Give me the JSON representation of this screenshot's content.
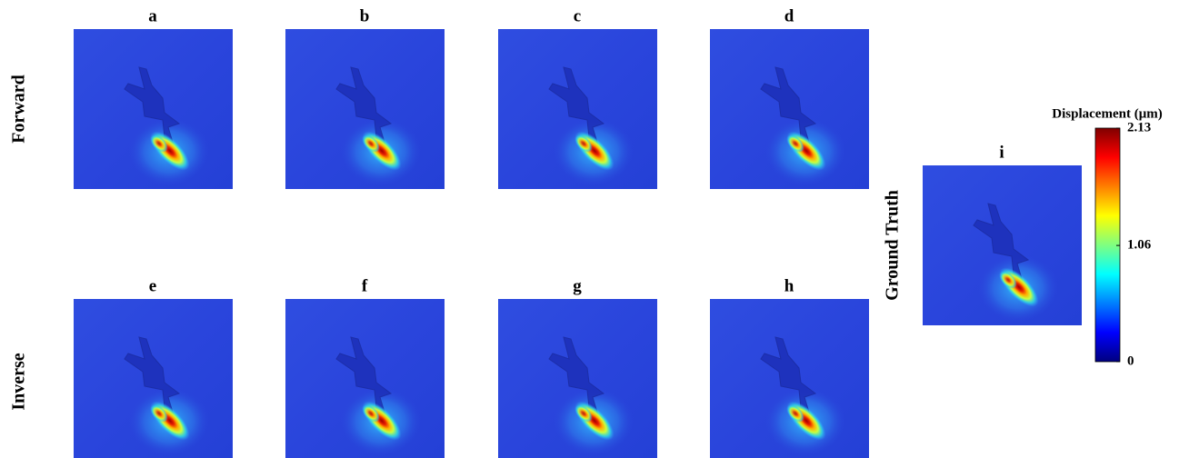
{
  "rows": [
    "Forward",
    "Inverse"
  ],
  "panels": [
    "a",
    "b",
    "c",
    "d",
    "e",
    "f",
    "g",
    "h"
  ],
  "ground_truth": {
    "label": "Ground Truth",
    "panel": "i"
  },
  "colorbar": {
    "title": "Displacement (μm)",
    "lim": [
      0,
      2.13
    ],
    "ticks": [
      0,
      1.06,
      2.13
    ]
  }
}
